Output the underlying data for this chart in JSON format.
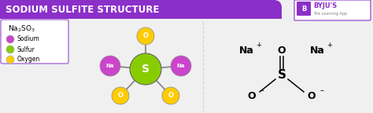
{
  "title": "SODIUM SULFITE STRUCTURE",
  "title_bg": "#8B2FC9",
  "title_color": "#FFFFFF",
  "bg_color": "#F0F0F0",
  "legend_items": [
    {
      "label": "Sodium",
      "color": "#CC44CC"
    },
    {
      "label": "Sulfur",
      "color": "#88CC00"
    },
    {
      "label": "Oxygen",
      "color": "#FFCC00"
    }
  ],
  "na_color": "#CC44CC",
  "s_color": "#88CC00",
  "o_color": "#FFCC00",
  "byju_purple": "#8B2FC9"
}
